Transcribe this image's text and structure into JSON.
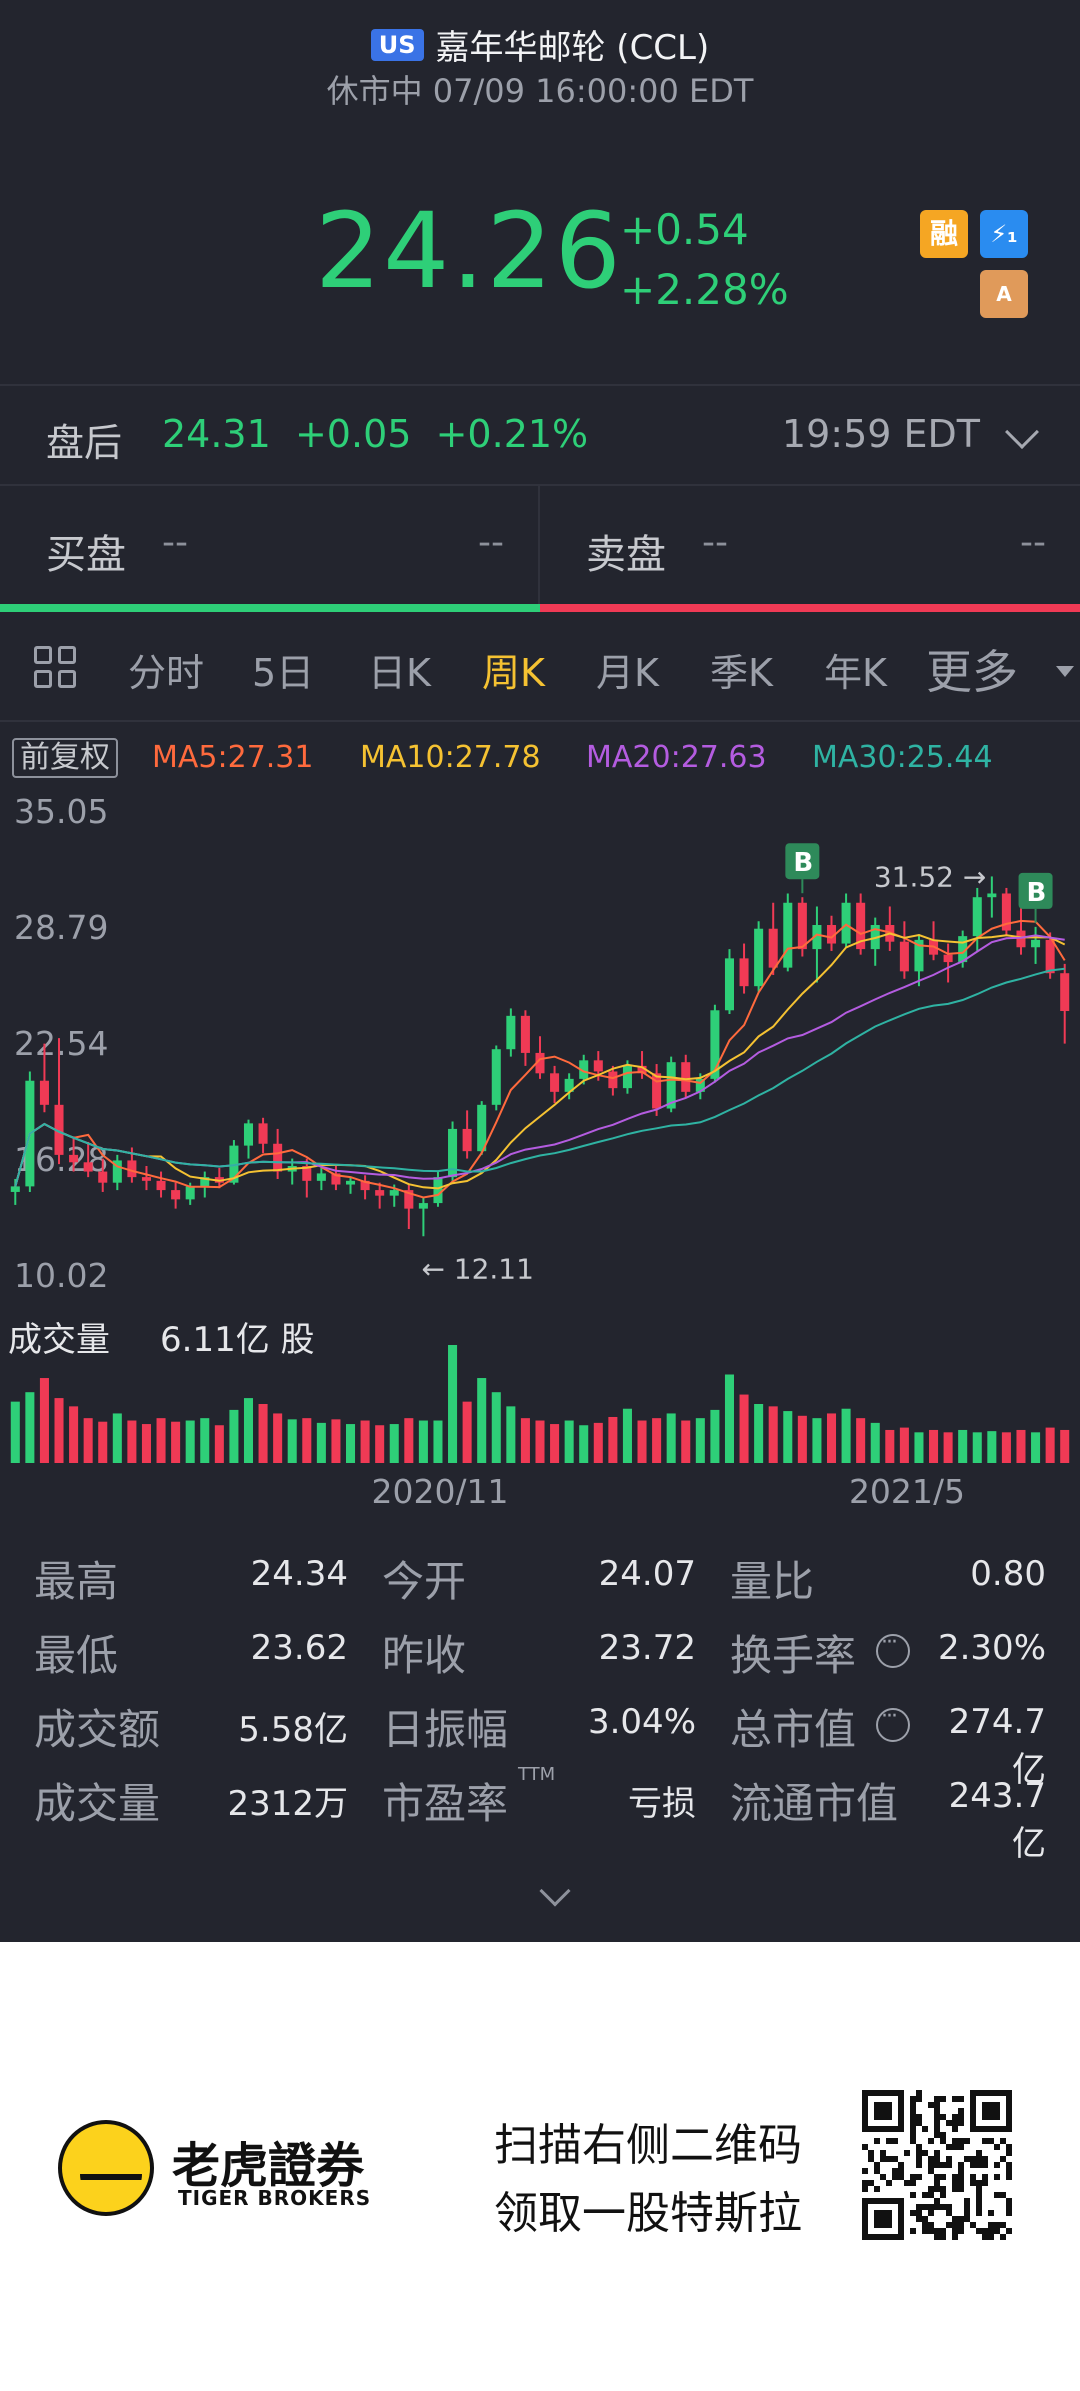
{
  "header": {
    "market_badge": "US",
    "stock_name": "嘉年华邮轮 (CCL)",
    "status": "休市中 07/09 16:00:00 EDT"
  },
  "quote": {
    "price": "24.26",
    "change": "+0.54",
    "change_pct": "+2.28%",
    "tags": [
      "融",
      "⚡₁",
      "A"
    ],
    "colors": {
      "up": "#2ecf78",
      "down": "#f03a55",
      "active_tab": "#f5c232"
    }
  },
  "after_hours": {
    "label": "盘后",
    "price": "24.31",
    "change": "+0.05",
    "change_pct": "+0.21%",
    "time": "19:59 EDT"
  },
  "order_book": {
    "bid_label": "买盘",
    "bid_price": "--",
    "bid_size": "--",
    "ask_label": "卖盘",
    "ask_price": "--",
    "ask_size": "--"
  },
  "tabs": {
    "items": [
      "分时",
      "5日",
      "日K",
      "周K",
      "月K",
      "季K",
      "年K"
    ],
    "active": "周K",
    "more": "更多"
  },
  "indicators": {
    "adjust": "前复权",
    "ma5": "MA5:27.31",
    "ma10": "MA10:27.78",
    "ma20": "MA20:27.63",
    "ma30": "MA30:25.44",
    "colors": {
      "ma5": "#ff6a3d",
      "ma10": "#f5c232",
      "ma20": "#b45ce0",
      "ma30": "#2fb3a3"
    }
  },
  "chart_data": {
    "type": "candlestick",
    "y_ticks": [
      "35.05",
      "28.79",
      "22.54",
      "16.28",
      "10.02"
    ],
    "x_ticks": [
      "2020/11",
      "2021/5"
    ],
    "ylim": [
      10.02,
      35.05
    ],
    "annotations": {
      "high": "31.52",
      "low": "12.11",
      "signal": "B"
    },
    "volume_label": "成交量",
    "volume_value": "6.11亿 股",
    "candles": [
      [
        14.5,
        15.2,
        13.8,
        14.8
      ],
      [
        14.8,
        21.0,
        14.5,
        20.5
      ],
      [
        20.5,
        22.5,
        18.8,
        19.2
      ],
      [
        19.2,
        22.8,
        16.0,
        16.5
      ],
      [
        16.5,
        17.5,
        15.6,
        16.1
      ],
      [
        16.1,
        17.2,
        15.3,
        15.6
      ],
      [
        15.6,
        16.3,
        14.5,
        15.0
      ],
      [
        15.0,
        16.5,
        14.6,
        16.2
      ],
      [
        16.2,
        16.9,
        15.0,
        15.3
      ],
      [
        15.3,
        15.9,
        14.6,
        15.1
      ],
      [
        15.1,
        15.6,
        14.2,
        14.6
      ],
      [
        14.6,
        15.0,
        13.6,
        14.1
      ],
      [
        14.1,
        15.0,
        13.8,
        14.8
      ],
      [
        14.8,
        15.6,
        14.2,
        15.3
      ],
      [
        15.3,
        15.8,
        14.7,
        15.0
      ],
      [
        15.0,
        17.3,
        14.9,
        17.0
      ],
      [
        17.0,
        18.4,
        16.3,
        18.2
      ],
      [
        18.2,
        18.5,
        16.6,
        17.1
      ],
      [
        17.1,
        17.9,
        15.2,
        15.6
      ],
      [
        15.6,
        16.3,
        14.9,
        15.9
      ],
      [
        15.9,
        16.3,
        14.2,
        15.1
      ],
      [
        15.1,
        15.8,
        14.6,
        15.5
      ],
      [
        15.5,
        15.9,
        14.6,
        14.9
      ],
      [
        14.9,
        15.3,
        14.4,
        15.1
      ],
      [
        15.1,
        15.4,
        14.1,
        14.6
      ],
      [
        14.6,
        15.0,
        13.6,
        14.3
      ],
      [
        14.3,
        14.9,
        13.7,
        14.6
      ],
      [
        14.6,
        14.9,
        12.5,
        13.6
      ],
      [
        13.6,
        14.2,
        12.11,
        13.9
      ],
      [
        13.9,
        15.6,
        13.7,
        15.3
      ],
      [
        15.3,
        18.3,
        15.1,
        17.9
      ],
      [
        17.9,
        18.9,
        16.3,
        16.7
      ],
      [
        16.7,
        19.4,
        16.5,
        19.2
      ],
      [
        19.2,
        22.4,
        18.9,
        22.2
      ],
      [
        22.2,
        24.4,
        21.8,
        24.0
      ],
      [
        24.0,
        24.3,
        21.3,
        22.0
      ],
      [
        22.0,
        22.9,
        20.6,
        20.9
      ],
      [
        20.9,
        21.3,
        19.3,
        19.9
      ],
      [
        19.9,
        20.9,
        19.5,
        20.6
      ],
      [
        20.6,
        21.9,
        20.3,
        21.6
      ],
      [
        21.6,
        22.1,
        20.5,
        21.0
      ],
      [
        21.0,
        21.3,
        19.7,
        20.1
      ],
      [
        20.1,
        21.6,
        19.8,
        21.3
      ],
      [
        21.3,
        22.1,
        20.6,
        20.9
      ],
      [
        20.9,
        21.4,
        18.6,
        19.0
      ],
      [
        19.0,
        21.8,
        18.8,
        21.5
      ],
      [
        21.5,
        21.9,
        19.6,
        19.9
      ],
      [
        19.9,
        20.9,
        19.5,
        20.6
      ],
      [
        20.6,
        24.6,
        20.4,
        24.3
      ],
      [
        24.3,
        27.6,
        24.1,
        27.1
      ],
      [
        27.1,
        27.9,
        25.2,
        25.6
      ],
      [
        25.6,
        29.1,
        25.3,
        28.7
      ],
      [
        28.7,
        30.1,
        26.2,
        26.6
      ],
      [
        26.6,
        30.6,
        26.4,
        30.1
      ],
      [
        30.1,
        30.4,
        27.2,
        27.6
      ],
      [
        27.6,
        29.9,
        25.8,
        28.9
      ],
      [
        28.9,
        29.4,
        27.5,
        27.9
      ],
      [
        27.9,
        30.6,
        27.7,
        30.1
      ],
      [
        30.1,
        30.6,
        27.3,
        27.6
      ],
      [
        27.6,
        29.3,
        26.7,
        28.9
      ],
      [
        28.9,
        29.9,
        27.5,
        28.0
      ],
      [
        28.0,
        29.1,
        26.0,
        26.4
      ],
      [
        26.4,
        28.4,
        25.6,
        28.1
      ],
      [
        28.1,
        29.1,
        27.0,
        27.3
      ],
      [
        27.3,
        27.9,
        25.8,
        26.9
      ],
      [
        26.9,
        28.6,
        26.6,
        28.3
      ],
      [
        28.3,
        30.9,
        27.5,
        30.4
      ],
      [
        30.4,
        31.52,
        29.3,
        30.6
      ],
      [
        30.6,
        30.9,
        28.3,
        28.6
      ],
      [
        28.6,
        29.8,
        27.3,
        27.7
      ],
      [
        27.7,
        28.8,
        26.8,
        28.1
      ],
      [
        28.1,
        28.5,
        26.0,
        26.3
      ],
      [
        26.3,
        26.8,
        22.5,
        24.26
      ]
    ],
    "volume": [
      0.52,
      0.6,
      0.72,
      0.55,
      0.48,
      0.38,
      0.35,
      0.42,
      0.36,
      0.33,
      0.38,
      0.35,
      0.36,
      0.38,
      0.32,
      0.45,
      0.55,
      0.5,
      0.42,
      0.37,
      0.38,
      0.34,
      0.37,
      0.33,
      0.36,
      0.32,
      0.33,
      0.38,
      0.36,
      0.36,
      1.0,
      0.52,
      0.72,
      0.6,
      0.48,
      0.38,
      0.36,
      0.33,
      0.36,
      0.32,
      0.34,
      0.39,
      0.46,
      0.36,
      0.38,
      0.42,
      0.36,
      0.38,
      0.45,
      0.75,
      0.58,
      0.5,
      0.48,
      0.44,
      0.4,
      0.38,
      0.42,
      0.46,
      0.38,
      0.34,
      0.28,
      0.3,
      0.26,
      0.28,
      0.26,
      0.28,
      0.26,
      0.27,
      0.26,
      0.28,
      0.26,
      0.3,
      0.28
    ]
  },
  "stats": [
    {
      "label": "最高",
      "value": "24.34"
    },
    {
      "label": "今开",
      "value": "24.07"
    },
    {
      "label": "量比",
      "value": "0.80"
    },
    {
      "label": "最低",
      "value": "23.62"
    },
    {
      "label": "昨收",
      "value": "23.72"
    },
    {
      "label": "换手率",
      "value": "2.30%"
    },
    {
      "label": "成交额",
      "value": "5.58亿"
    },
    {
      "label": "日振幅",
      "value": "3.04%"
    },
    {
      "label": "总市值",
      "value": "274.7亿"
    },
    {
      "label": "成交量",
      "value": "2312万"
    },
    {
      "label": "市盈率",
      "value": "亏损",
      "suffix": "TTM"
    },
    {
      "label": "流通市值",
      "value": "243.7亿"
    }
  ],
  "footer": {
    "brand_cn": "老虎證券",
    "brand_en": "TIGER BROKERS",
    "promo_line1": "扫描右侧二维码",
    "promo_line2": "领取一股特斯拉"
  }
}
